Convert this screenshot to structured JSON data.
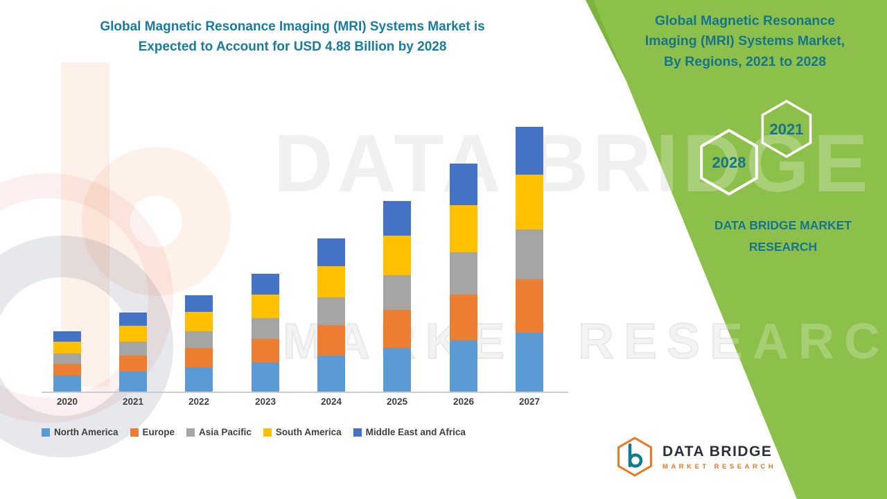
{
  "colors": {
    "teal_title": "#187C9C",
    "teal_panel": "#14758C",
    "green_panel": "#8DC04B",
    "green_stripe": "#7CB43C",
    "orange_brand": "#E87722",
    "wordmark_dark": "#2A2F3A",
    "axis_line": "#C9CDD2",
    "axis_label": "#404040"
  },
  "chart": {
    "title_line1": "Global Magnetic Resonance Imaging (MRI) Systems Market is",
    "title_line2": "Expected to Account for USD 4.88 Billion by 2028"
  },
  "chart_data": {
    "type": "bar",
    "stacked": true,
    "title": "Global Magnetic Resonance Imaging (MRI) Systems Market is Expected to Account for USD 4.88 Billion by 2028",
    "categories": [
      "2020",
      "2021",
      "2022",
      "2023",
      "2024",
      "2025",
      "2026",
      "2027"
    ],
    "series": [
      {
        "name": "North America",
        "color": "#5B9BD5",
        "values": [
          0.26,
          0.33,
          0.4,
          0.48,
          0.6,
          0.72,
          0.85,
          0.98
        ]
      },
      {
        "name": "Europe",
        "color": "#ED7D31",
        "values": [
          0.2,
          0.26,
          0.32,
          0.39,
          0.51,
          0.63,
          0.76,
          0.89
        ]
      },
      {
        "name": "Asia Pacific",
        "color": "#A5A5A5",
        "values": [
          0.17,
          0.23,
          0.28,
          0.34,
          0.46,
          0.58,
          0.7,
          0.83
        ]
      },
      {
        "name": "South America",
        "color": "#FFC000",
        "values": [
          0.2,
          0.26,
          0.32,
          0.39,
          0.52,
          0.65,
          0.78,
          0.91
        ]
      },
      {
        "name": "Middle East and Africa",
        "color": "#4472C4",
        "values": [
          0.17,
          0.22,
          0.28,
          0.35,
          0.46,
          0.57,
          0.69,
          0.79
        ]
      }
    ],
    "units_note": "No y-axis shown; segment values estimated in USD Billion from bar heights (2028 projection of USD 4.88 Billion stated in title)",
    "xlabel": "",
    "ylabel": "",
    "ylim": [
      0,
      5
    ],
    "grid": false,
    "legend_position": "bottom"
  },
  "right_panel": {
    "title_line1": "Global Magnetic Resonance",
    "title_line2": "Imaging (MRI) Systems Market,",
    "title_line3": "By Regions, 2021 to 2028",
    "hexagon_year_top": "2021",
    "hexagon_year_bottom": "2028",
    "brand_line1": "DATA BRIDGE MARKET",
    "brand_line2": "RESEARCH"
  },
  "footer_logo": {
    "brand": "DATA BRIDGE",
    "tagline": "MARKET RESEARCH"
  },
  "watermark": {
    "line1": "DATA BRIDGE",
    "line2": "MARKET RESEARCH"
  }
}
